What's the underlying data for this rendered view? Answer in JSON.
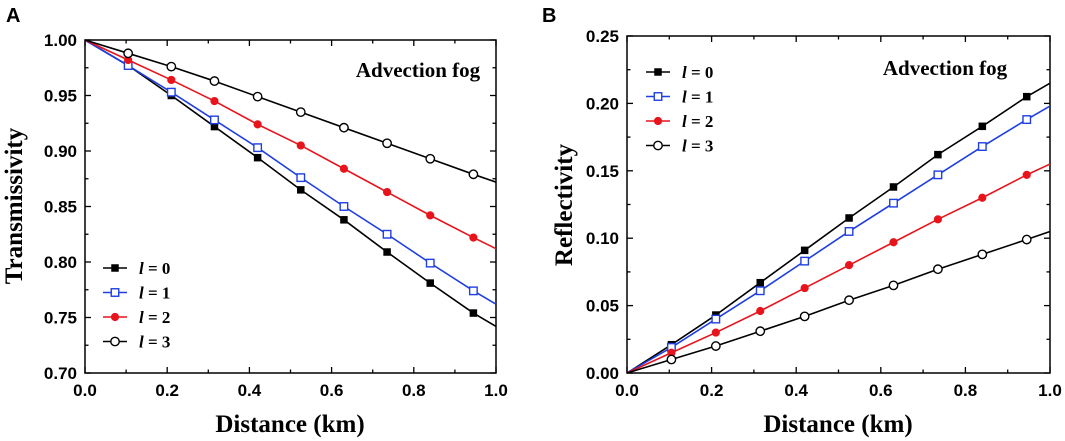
{
  "chart_data": [
    {
      "panel": "A",
      "type": "line",
      "title": "",
      "xlabel": "Distance (km)",
      "ylabel": "Transmissivity",
      "annotation": "Advection fog",
      "xlim": [
        0.0,
        1.0
      ],
      "ylim": [
        0.7,
        1.0
      ],
      "xticks": [
        "0.0",
        "0.2",
        "0.4",
        "0.6",
        "0.8",
        "1.0"
      ],
      "yticks": [
        "0.70",
        "0.75",
        "0.80",
        "0.85",
        "0.90",
        "0.95",
        "1.00"
      ],
      "legend_position": "bottom-left",
      "x": [
        0.0,
        0.105,
        0.21,
        0.315,
        0.42,
        0.525,
        0.63,
        0.735,
        0.84,
        0.945,
        1.0
      ],
      "series": [
        {
          "name": "l = 0",
          "symbol": "l",
          "value_label": "0",
          "color": "#000000",
          "marker": "square-filled",
          "values": [
            1.0,
            0.977,
            0.95,
            0.922,
            0.894,
            0.865,
            0.838,
            0.809,
            0.781,
            0.754,
            0.742
          ]
        },
        {
          "name": "l = 1",
          "symbol": "l",
          "value_label": "1",
          "color": "#1f3fe0",
          "marker": "square-open",
          "values": [
            1.0,
            0.977,
            0.953,
            0.928,
            0.903,
            0.876,
            0.85,
            0.825,
            0.799,
            0.774,
            0.762
          ]
        },
        {
          "name": "l = 2",
          "symbol": "l",
          "value_label": "2",
          "color": "#e8141c",
          "marker": "circle-filled",
          "values": [
            1.0,
            0.982,
            0.964,
            0.945,
            0.924,
            0.905,
            0.884,
            0.863,
            0.842,
            0.822,
            0.812
          ]
        },
        {
          "name": "l = 3",
          "symbol": "l",
          "value_label": "3",
          "color": "#000000",
          "marker": "circle-open",
          "values": [
            1.0,
            0.988,
            0.976,
            0.963,
            0.949,
            0.935,
            0.921,
            0.907,
            0.893,
            0.879,
            0.872
          ]
        }
      ]
    },
    {
      "panel": "B",
      "type": "line",
      "title": "",
      "xlabel": "Distance (km)",
      "ylabel": "Reflectivity",
      "annotation": "Advection fog",
      "xlim": [
        0.0,
        1.0
      ],
      "ylim": [
        0.0,
        0.25
      ],
      "xticks": [
        "0.0",
        "0.2",
        "0.4",
        "0.6",
        "0.8",
        "1.0"
      ],
      "yticks": [
        "0.00",
        "0.05",
        "0.10",
        "0.15",
        "0.20",
        "0.25"
      ],
      "legend_position": "top-left",
      "x": [
        0.0,
        0.105,
        0.21,
        0.315,
        0.42,
        0.525,
        0.63,
        0.735,
        0.84,
        0.945,
        1.0
      ],
      "series": [
        {
          "name": "l = 0",
          "symbol": "l",
          "value_label": "0",
          "color": "#000000",
          "marker": "square-filled",
          "values": [
            0.0,
            0.021,
            0.043,
            0.067,
            0.091,
            0.115,
            0.138,
            0.162,
            0.183,
            0.205,
            0.215
          ]
        },
        {
          "name": "l = 1",
          "symbol": "l",
          "value_label": "1",
          "color": "#1f3fe0",
          "marker": "square-open",
          "values": [
            0.0,
            0.019,
            0.04,
            0.061,
            0.083,
            0.105,
            0.126,
            0.147,
            0.168,
            0.188,
            0.198
          ]
        },
        {
          "name": "l = 2",
          "symbol": "l",
          "value_label": "2",
          "color": "#e8141c",
          "marker": "circle-filled",
          "values": [
            0.0,
            0.015,
            0.03,
            0.046,
            0.063,
            0.08,
            0.097,
            0.114,
            0.13,
            0.147,
            0.155
          ]
        },
        {
          "name": "l = 3",
          "symbol": "l",
          "value_label": "3",
          "color": "#000000",
          "marker": "circle-open",
          "values": [
            0.0,
            0.01,
            0.02,
            0.031,
            0.042,
            0.054,
            0.065,
            0.077,
            0.088,
            0.099,
            0.105
          ]
        }
      ]
    }
  ]
}
